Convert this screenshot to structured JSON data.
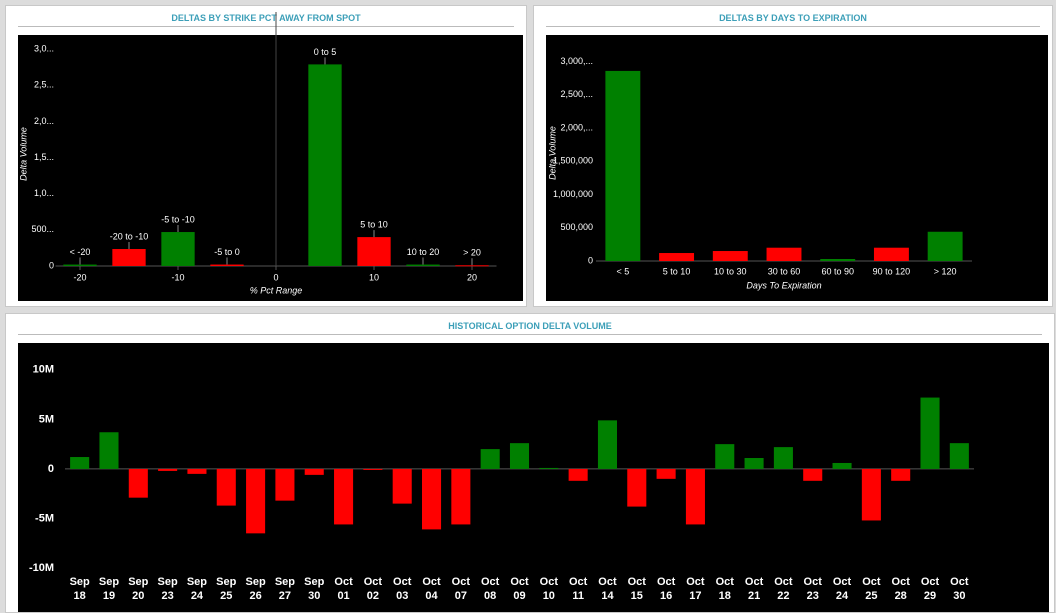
{
  "chart_data": [
    {
      "type": "bar",
      "title": "DELTAS BY STRIKE PCT AWAY FROM SPOT",
      "x": [
        -20,
        -15,
        -10,
        -5,
        5,
        10,
        15,
        20
      ],
      "categories": [
        "< -20",
        "-20 to -10",
        "-5 to -10",
        "-5 to 0",
        "0 to 5",
        "5 to 10",
        "10 to 20",
        "> 20"
      ],
      "values": [
        20000,
        235000,
        470000,
        20000,
        2790000,
        400000,
        20000,
        10000
      ],
      "colors": [
        "#008000",
        "#ff0000",
        "#008000",
        "#ff0000",
        "#008000",
        "#ff0000",
        "#008000",
        "#ff0000"
      ],
      "xlim": [
        -22.5,
        22.5
      ],
      "xticks": [
        -20,
        -10,
        0,
        10,
        20
      ],
      "ylim": [
        0,
        3100000
      ],
      "yticks": [
        0,
        {
          "value": 500000,
          "label": "500..."
        },
        {
          "value": 1000000,
          "label": "1,0..."
        },
        {
          "value": 1500000,
          "label": "1,5..."
        },
        {
          "value": 2000000,
          "label": "2,0..."
        },
        {
          "value": 2500000,
          "label": "2,5..."
        },
        {
          "value": 3000000,
          "label": "3,0..."
        }
      ],
      "xlabel": "% Pct Range",
      "ylabel": "Delta Volume"
    },
    {
      "type": "bar",
      "title": "DELTAS BY DAYS TO EXPIRATION",
      "categories": [
        "< 5",
        "5 to 10",
        "10 to 30",
        "30 to 60",
        "60 to 90",
        "90 to 120",
        "> 120"
      ],
      "values": [
        2860000,
        120000,
        150000,
        200000,
        30000,
        200000,
        440000
      ],
      "colors": [
        "#008000",
        "#ff0000",
        "#ff0000",
        "#ff0000",
        "#008000",
        "#ff0000",
        "#008000"
      ],
      "ylim": [
        0,
        3250000
      ],
      "yticks": [
        0,
        {
          "value": 500000,
          "label": "500,000"
        },
        {
          "value": 1000000,
          "label": "1,000,000"
        },
        {
          "value": 1500000,
          "label": "1,500,000"
        },
        {
          "value": 2000000,
          "label": "2,000,..."
        },
        {
          "value": 2500000,
          "label": "2,500,..."
        },
        {
          "value": 3000000,
          "label": "3,000,..."
        }
      ],
      "xlabel": "Days To Expiration",
      "ylabel": "Delta Volume"
    },
    {
      "type": "bar",
      "title": "HISTORICAL OPTION DELTA VOLUME",
      "categories": [
        "Sep 18",
        "Sep 19",
        "Sep 20",
        "Sep 23",
        "Sep 24",
        "Sep 25",
        "Sep 26",
        "Sep 27",
        "Sep 30",
        "Oct 01",
        "Oct 02",
        "Oct 03",
        "Oct 04",
        "Oct 07",
        "Oct 08",
        "Oct 09",
        "Oct 10",
        "Oct 11",
        "Oct 14",
        "Oct 15",
        "Oct 16",
        "Oct 17",
        "Oct 18",
        "Oct 21",
        "Oct 22",
        "Oct 23",
        "Oct 24",
        "Oct 25",
        "Oct 28",
        "Oct 29",
        "Oct 30"
      ],
      "values": [
        1200000,
        3700000,
        -2900000,
        -200000,
        -500000,
        -3700000,
        -6500000,
        -3200000,
        -600000,
        -5600000,
        -100000,
        -3500000,
        -6100000,
        -5600000,
        2000000,
        2600000,
        100000,
        -1200000,
        4900000,
        -3800000,
        -1000000,
        -5600000,
        2500000,
        1100000,
        2200000,
        -1200000,
        600000,
        -5200000,
        -1200000,
        7200000,
        2600000
      ],
      "positive_color": "#008000",
      "negative_color": "#ff0000",
      "ylim": [
        -10500000,
        12200000
      ],
      "yticks": [
        {
          "value": -10000000,
          "label": "-10M"
        },
        {
          "value": -5000000,
          "label": "-5M"
        },
        0,
        {
          "value": 5000000,
          "label": "5M"
        },
        {
          "value": 10000000,
          "label": "10M"
        }
      ]
    }
  ]
}
